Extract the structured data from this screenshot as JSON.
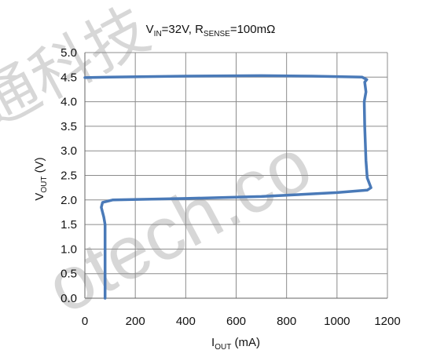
{
  "chart_data": {
    "type": "line",
    "title": {
      "main": "V",
      "sub1": "IN",
      "mid": "=32V, R",
      "sub2": "SENSE",
      "tail": "=100mΩ"
    },
    "xlabel": {
      "main": "I",
      "sub": "OUT",
      "tail": " (mA)"
    },
    "ylabel": {
      "main": "V",
      "sub": "OUT",
      "tail": " (V)"
    },
    "xlim": [
      0,
      1200
    ],
    "ylim": [
      0,
      5
    ],
    "xticks": [
      0,
      200,
      400,
      600,
      800,
      1000,
      1200
    ],
    "yticks": [
      0.0,
      0.5,
      1.0,
      1.5,
      2.0,
      2.5,
      3.0,
      3.5,
      4.0,
      4.5,
      5.0
    ],
    "grid": true,
    "series": [
      {
        "color": "#4a7ab8",
        "points": [
          [
            80,
            0.0
          ],
          [
            80,
            1.5
          ],
          [
            75,
            1.65
          ],
          [
            65,
            1.85
          ],
          [
            70,
            1.95
          ],
          [
            110,
            2.0
          ],
          [
            400,
            2.03
          ],
          [
            700,
            2.07
          ],
          [
            1000,
            2.15
          ],
          [
            1120,
            2.2
          ],
          [
            1135,
            2.25
          ],
          [
            1120,
            2.45
          ],
          [
            1115,
            2.8
          ],
          [
            1110,
            3.5
          ],
          [
            1108,
            4.0
          ],
          [
            1115,
            4.2
          ],
          [
            1110,
            4.4
          ],
          [
            1118,
            4.45
          ],
          [
            1100,
            4.5
          ],
          [
            900,
            4.52
          ],
          [
            700,
            4.53
          ],
          [
            400,
            4.52
          ],
          [
            100,
            4.5
          ],
          [
            0,
            4.49
          ]
        ]
      }
    ],
    "colors": {
      "line": "#4a7ab8",
      "grid": "#8c8c8c",
      "axis": "#666666"
    },
    "watermark": "通科技 otech.com"
  }
}
